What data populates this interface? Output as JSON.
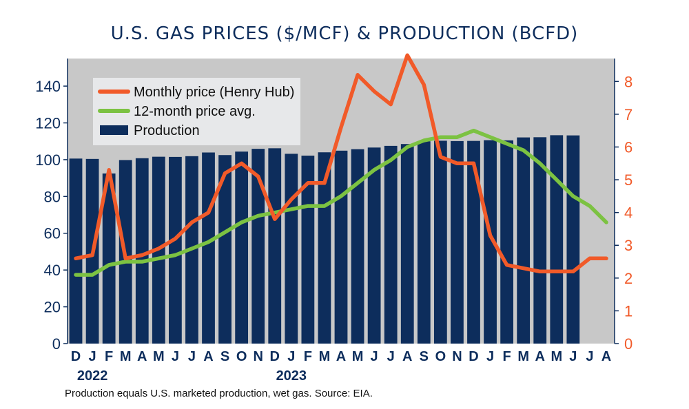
{
  "chart_data": {
    "type": "bar+line",
    "title": "U.S. GAS PRICES ($/MCF) & PRODUCTION (BCFD)",
    "categories": [
      "D",
      "J",
      "F",
      "M",
      "A",
      "M",
      "J",
      "J",
      "A",
      "S",
      "O",
      "N",
      "D",
      "J",
      "F",
      "M",
      "A",
      "M",
      "J",
      "J",
      "A",
      "S",
      "O",
      "N",
      "D",
      "J",
      "F",
      "M",
      "A",
      "M",
      "J",
      "J",
      "A"
    ],
    "year_labels": [
      "2022",
      "2023"
    ],
    "left_axis": {
      "ylim": [
        0,
        155
      ],
      "ticks": [
        0,
        20,
        40,
        60,
        80,
        100,
        120,
        140
      ]
    },
    "right_axis": {
      "ylim": [
        0,
        8.7
      ],
      "ticks": [
        0,
        1,
        2,
        3,
        4,
        5,
        6,
        7,
        8
      ]
    },
    "series": [
      {
        "name": "Production",
        "axis": "left",
        "kind": "bar",
        "values": [
          100.6,
          100.4,
          92.5,
          99.8,
          100.8,
          101.6,
          101.5,
          101.9,
          103.9,
          102.5,
          104.4,
          105.9,
          106.2,
          103.2,
          102.2,
          104.0,
          104.9,
          105.7,
          106.6,
          107.5,
          108.5,
          110.0,
          110.3,
          110.1,
          110.2,
          110.6,
          110.5,
          112.1,
          112.2,
          113.3,
          113.2,
          null,
          null
        ]
      },
      {
        "name": "Monthly price (Henry Hub)",
        "axis": "right",
        "kind": "line",
        "values": [
          2.6,
          2.7,
          5.3,
          2.6,
          2.7,
          2.9,
          3.2,
          3.7,
          4.0,
          5.2,
          5.5,
          5.1,
          3.8,
          4.4,
          4.9,
          4.9,
          6.6,
          8.2,
          7.7,
          7.3,
          8.8,
          7.9,
          5.7,
          5.5,
          5.5,
          3.3,
          2.4,
          2.3,
          2.2,
          2.2,
          2.2,
          2.6,
          2.6
        ]
      },
      {
        "name": "12-month price avg.",
        "axis": "right",
        "kind": "line",
        "values": [
          2.1,
          2.1,
          2.4,
          2.5,
          2.5,
          2.6,
          2.7,
          2.9,
          3.1,
          3.4,
          3.7,
          3.9,
          4.0,
          4.1,
          4.2,
          4.2,
          4.5,
          4.9,
          5.3,
          5.6,
          6.0,
          6.2,
          6.3,
          6.3,
          6.5,
          6.3,
          6.1,
          5.9,
          5.5,
          5.0,
          4.5,
          4.2,
          3.7
        ]
      }
    ],
    "legend": [
      "Monthly price (Henry Hub)",
      "12-month price avg.",
      "Production"
    ],
    "colors": {
      "bars": "#0d2d5c",
      "price": "#f15a29",
      "avg": "#7cc242",
      "plot_bg": "#c8c8c8",
      "legend_bg": "#e7e8ea",
      "left_axis": "#0d2d5c",
      "right_axis": "#f15a29"
    }
  },
  "footnote": "Production equals U.S. marketed production, wet gas. Source: EIA."
}
